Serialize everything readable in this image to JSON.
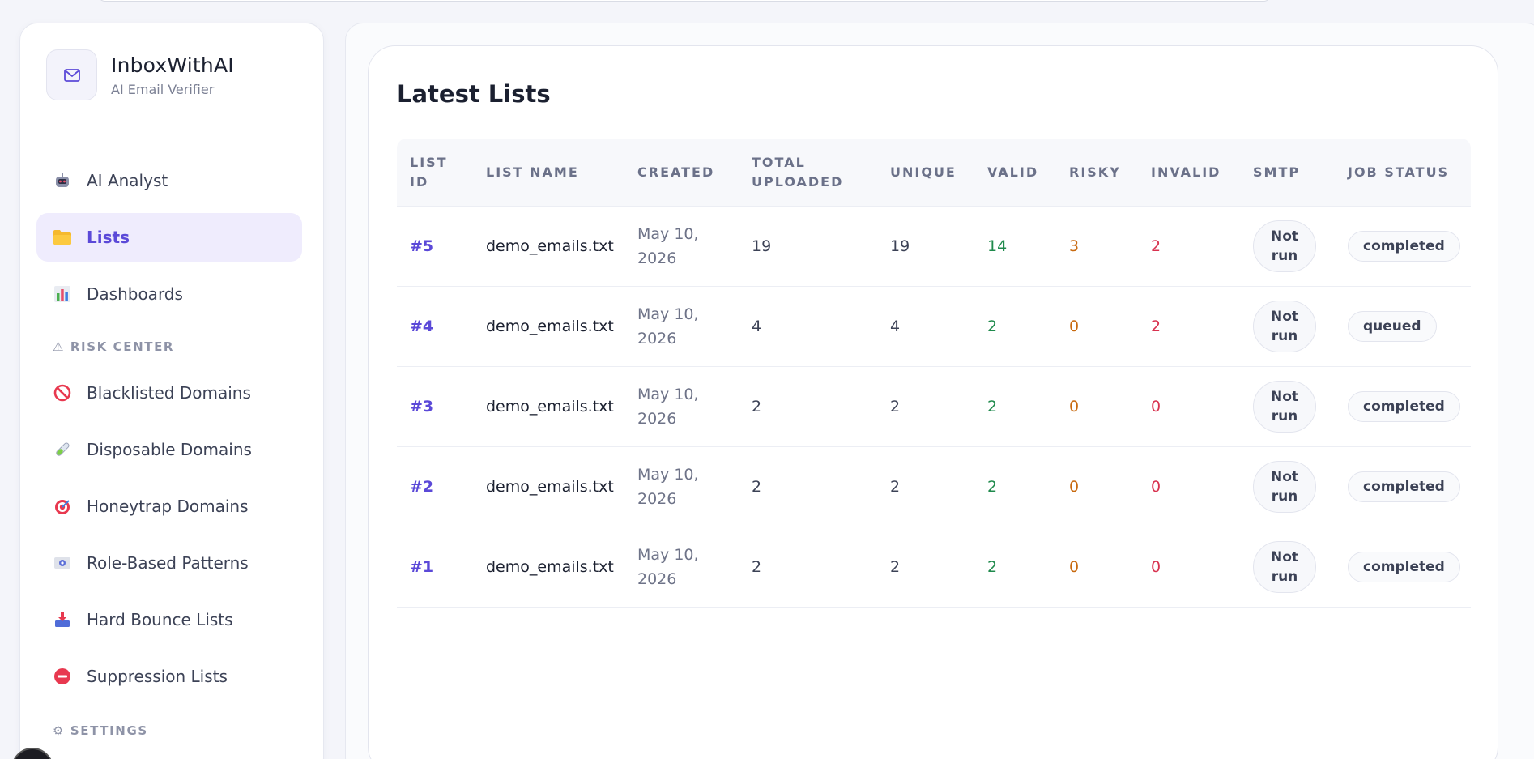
{
  "brand": {
    "name": "InboxWithAI",
    "subtitle": "AI Email Verifier"
  },
  "sidebar": {
    "items": [
      {
        "label": "AI Analyst",
        "icon": "robot-icon"
      },
      {
        "label": "Lists",
        "icon": "folder-icon",
        "active": true
      },
      {
        "label": "Dashboards",
        "icon": "bar-chart-icon"
      }
    ],
    "risk_center": {
      "label": "⚠ RISK CENTER",
      "items": [
        {
          "label": "Blacklisted Domains",
          "icon": "prohibited-icon"
        },
        {
          "label": "Disposable Domains",
          "icon": "test-tube-icon"
        },
        {
          "label": "Honeytrap Domains",
          "icon": "target-icon"
        },
        {
          "label": "Role-Based Patterns",
          "icon": "id-card-icon"
        },
        {
          "label": "Hard Bounce Lists",
          "icon": "inbox-tray-icon"
        },
        {
          "label": "Suppression Lists",
          "icon": "no-entry-icon"
        }
      ]
    },
    "settings_label": "⚙ SETTINGS"
  },
  "main": {
    "title": "Latest Lists",
    "columns": [
      "LIST ID",
      "LIST NAME",
      "CREATED",
      "TOTAL UPLOADED",
      "UNIQUE",
      "VALID",
      "RISKY",
      "INVALID",
      "SMTP",
      "JOB STATUS"
    ],
    "rows": [
      {
        "id": "#5",
        "name": "demo_emails.txt",
        "created_line1": "May 10,",
        "created_line2": "2026",
        "total": "19",
        "unique": "19",
        "valid": "14",
        "risky": "3",
        "invalid": "2",
        "smtp_line1": "Not",
        "smtp_line2": "run",
        "status": "completed"
      },
      {
        "id": "#4",
        "name": "demo_emails.txt",
        "created_line1": "May 10,",
        "created_line2": "2026",
        "total": "4",
        "unique": "4",
        "valid": "2",
        "risky": "0",
        "invalid": "2",
        "smtp_line1": "Not",
        "smtp_line2": "run",
        "status": "queued"
      },
      {
        "id": "#3",
        "name": "demo_emails.txt",
        "created_line1": "May 10,",
        "created_line2": "2026",
        "total": "2",
        "unique": "2",
        "valid": "2",
        "risky": "0",
        "invalid": "0",
        "smtp_line1": "Not",
        "smtp_line2": "run",
        "status": "completed"
      },
      {
        "id": "#2",
        "name": "demo_emails.txt",
        "created_line1": "May 10,",
        "created_line2": "2026",
        "total": "2",
        "unique": "2",
        "valid": "2",
        "risky": "0",
        "invalid": "0",
        "smtp_line1": "Not",
        "smtp_line2": "run",
        "status": "completed"
      },
      {
        "id": "#1",
        "name": "demo_emails.txt",
        "created_line1": "May 10,",
        "created_line2": "2026",
        "total": "2",
        "unique": "2",
        "valid": "2",
        "risky": "0",
        "invalid": "0",
        "smtp_line1": "Not",
        "smtp_line2": "run",
        "status": "completed"
      }
    ]
  },
  "colors": {
    "accent": "#5b49d8",
    "valid": "#1f8a4c",
    "risky": "#c86a10",
    "invalid": "#d8324f"
  }
}
